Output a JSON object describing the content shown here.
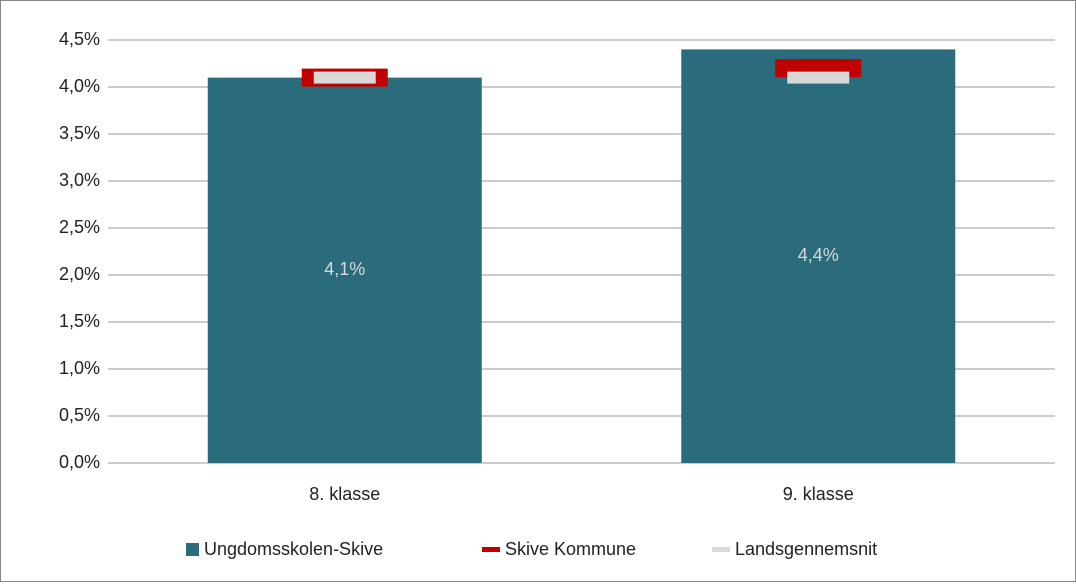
{
  "chart_data": {
    "type": "bar",
    "categories": [
      "8. klasse",
      "9. klasse"
    ],
    "series": [
      {
        "name": "Ungdomsskolen-Skive",
        "type": "bar",
        "color": "#2a6b7c",
        "values": [
          4.1,
          4.4
        ],
        "value_labels": [
          "4,1%",
          "4,4%"
        ]
      },
      {
        "name": "Skive Kommune",
        "type": "marker",
        "color": "#c00000",
        "values": [
          4.1,
          4.2
        ]
      },
      {
        "name": "Landsgennemsnit",
        "type": "marker",
        "color": "#d9d9d9",
        "values": [
          4.1,
          4.1
        ]
      }
    ],
    "ylim": [
      0,
      4.5
    ],
    "yticks": [
      {
        "value": 0,
        "label": "0,0%"
      },
      {
        "value": 0.5,
        "label": "0,5%"
      },
      {
        "value": 1,
        "label": "1,0%"
      },
      {
        "value": 1.5,
        "label": "1,5%"
      },
      {
        "value": 2,
        "label": "2,0%"
      },
      {
        "value": 2.5,
        "label": "2,5%"
      },
      {
        "value": 3,
        "label": "3,0%"
      },
      {
        "value": 3.5,
        "label": "3,5%"
      },
      {
        "value": 4,
        "label": "4,0%"
      },
      {
        "value": 4.5,
        "label": "4,5%"
      }
    ],
    "grid": true,
    "legend": "bottom"
  }
}
